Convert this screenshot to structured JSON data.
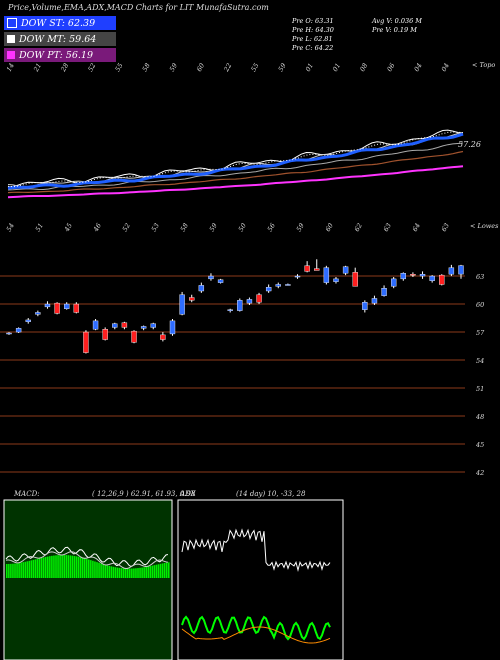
{
  "header": {
    "title": "Price,Volume,EMA,ADX,MACD Charts for LIT MunafaSutra.com"
  },
  "legend": [
    {
      "label": "DOW ST: 62.39",
      "color": "#1f3fff"
    },
    {
      "label": "DOW MT: 59.64",
      "color": "#ffffff"
    },
    {
      "label": "DOW PT: 56.19",
      "color": "#ff33ff"
    }
  ],
  "stats": {
    "pre_o": "Pre  O: 63.31",
    "pre_h": "Pre  H: 64.30",
    "pre_l": "Pre  L: 62.81",
    "pre_c": "Pre  C: 64.22",
    "avg_v": "Avg V: 0.036  M",
    "pre_v": "Pre  V: 0.19 M"
  },
  "top_panel": {
    "right_label": "< Topo",
    "price_label": "57.26",
    "date_labels": [
      "14",
      "21",
      "28",
      "52",
      "55",
      "58",
      "59",
      "60",
      "22",
      "55",
      "59",
      "01",
      "01",
      "08",
      "06",
      "04",
      "04"
    ]
  },
  "mid_panel": {
    "right_label": "< Lowes",
    "date_labels": [
      "54",
      "51",
      "45",
      "46",
      "52",
      "53",
      "58",
      "59",
      "50",
      "56",
      "59",
      "60",
      "62",
      "63",
      "64",
      "63"
    ],
    "y_ticks": [
      "63",
      "60",
      "57",
      "54",
      "51",
      "48",
      "45",
      "42"
    ]
  },
  "macd": {
    "label": "MACD:",
    "values": "( 12,26,9 ) 62.91,  61.93,  0.98"
  },
  "adx": {
    "label": "ADX",
    "values": "(14  day) 10,  -33,  28"
  },
  "chart_data": {
    "type": "candlestick",
    "title": "Price,Volume,EMA,ADX,MACD Charts for LIT MunafaSutra.com",
    "ylim": [
      42,
      66
    ],
    "y_ticks": [
      63,
      60,
      57,
      54,
      51,
      48,
      45,
      42
    ],
    "candles": [
      {
        "o": 56.9,
        "h": 57.1,
        "l": 56.8,
        "c": 57.0
      },
      {
        "o": 57.1,
        "h": 57.6,
        "l": 57.0,
        "c": 57.5
      },
      {
        "o": 58.2,
        "h": 58.6,
        "l": 58.0,
        "c": 58.4
      },
      {
        "o": 59.0,
        "h": 59.4,
        "l": 58.8,
        "c": 59.2
      },
      {
        "o": 59.8,
        "h": 60.4,
        "l": 59.6,
        "c": 60.1
      },
      {
        "o": 60.2,
        "h": 60.3,
        "l": 59.0,
        "c": 59.1
      },
      {
        "o": 59.6,
        "h": 60.3,
        "l": 59.5,
        "c": 60.1
      },
      {
        "o": 60.1,
        "h": 60.3,
        "l": 59.1,
        "c": 59.2
      },
      {
        "o": 57.1,
        "h": 57.3,
        "l": 54.8,
        "c": 54.9
      },
      {
        "o": 57.4,
        "h": 58.5,
        "l": 57.3,
        "c": 58.3
      },
      {
        "o": 57.4,
        "h": 57.6,
        "l": 56.2,
        "c": 56.3
      },
      {
        "o": 57.6,
        "h": 58.1,
        "l": 57.4,
        "c": 58.0
      },
      {
        "o": 58.1,
        "h": 58.2,
        "l": 57.4,
        "c": 57.6
      },
      {
        "o": 57.2,
        "h": 57.3,
        "l": 55.9,
        "c": 56.0
      },
      {
        "o": 57.5,
        "h": 57.8,
        "l": 57.3,
        "c": 57.7
      },
      {
        "o": 57.6,
        "h": 58.1,
        "l": 57.4,
        "c": 58.0
      },
      {
        "o": 56.8,
        "h": 57.1,
        "l": 56.1,
        "c": 56.3
      },
      {
        "o": 56.9,
        "h": 58.5,
        "l": 56.7,
        "c": 58.3
      },
      {
        "o": 59.0,
        "h": 61.4,
        "l": 58.9,
        "c": 61.1
      },
      {
        "o": 60.8,
        "h": 61.1,
        "l": 60.3,
        "c": 60.5
      },
      {
        "o": 61.5,
        "h": 62.4,
        "l": 61.3,
        "c": 62.1
      },
      {
        "o": 62.8,
        "h": 63.4,
        "l": 62.6,
        "c": 63.1
      },
      {
        "o": 62.4,
        "h": 62.8,
        "l": 62.3,
        "c": 62.7
      },
      {
        "o": 59.4,
        "h": 59.6,
        "l": 59.2,
        "c": 59.5
      },
      {
        "o": 59.4,
        "h": 60.7,
        "l": 59.3,
        "c": 60.5
      },
      {
        "o": 60.2,
        "h": 60.8,
        "l": 60.0,
        "c": 60.6
      },
      {
        "o": 61.1,
        "h": 61.3,
        "l": 60.1,
        "c": 60.3
      },
      {
        "o": 61.5,
        "h": 62.2,
        "l": 61.3,
        "c": 61.9
      },
      {
        "o": 62.0,
        "h": 62.4,
        "l": 61.8,
        "c": 62.2
      },
      {
        "o": 62.2,
        "h": 62.3,
        "l": 62.1,
        "c": 62.2
      },
      {
        "o": 63.0,
        "h": 63.3,
        "l": 62.8,
        "c": 63.1
      },
      {
        "o": 64.2,
        "h": 64.7,
        "l": 63.5,
        "c": 63.6
      },
      {
        "o": 63.9,
        "h": 64.9,
        "l": 63.7,
        "c": 63.7
      },
      {
        "o": 62.4,
        "h": 64.2,
        "l": 62.2,
        "c": 64.0
      },
      {
        "o": 62.5,
        "h": 63.0,
        "l": 62.3,
        "c": 62.8
      },
      {
        "o": 63.4,
        "h": 64.2,
        "l": 63.2,
        "c": 64.1
      },
      {
        "o": 63.5,
        "h": 64.0,
        "l": 62.0,
        "c": 62.0
      },
      {
        "o": 59.5,
        "h": 60.5,
        "l": 59.2,
        "c": 60.3
      },
      {
        "o": 60.2,
        "h": 61.0,
        "l": 60.0,
        "c": 60.7
      },
      {
        "o": 61.0,
        "h": 62.1,
        "l": 60.9,
        "c": 61.8
      },
      {
        "o": 62.0,
        "h": 63.0,
        "l": 61.8,
        "c": 62.8
      },
      {
        "o": 62.8,
        "h": 63.5,
        "l": 62.6,
        "c": 63.4
      },
      {
        "o": 63.3,
        "h": 63.5,
        "l": 63.0,
        "c": 63.2
      },
      {
        "o": 63.1,
        "h": 63.6,
        "l": 62.8,
        "c": 63.3
      },
      {
        "o": 62.6,
        "h": 63.2,
        "l": 62.4,
        "c": 63.1
      },
      {
        "o": 63.2,
        "h": 63.3,
        "l": 62.1,
        "c": 62.2
      },
      {
        "o": 63.3,
        "h": 64.3,
        "l": 63.1,
        "c": 64.0
      },
      {
        "o": 63.31,
        "h": 64.3,
        "l": 62.81,
        "c": 64.22
      }
    ],
    "macd": {
      "fast": 12,
      "slow": 26,
      "signal": 9,
      "macd": 62.91,
      "signal_value": 61.93,
      "histogram": 0.98
    },
    "adx": {
      "period": 14,
      "adx": 10,
      "minus_di": -33,
      "plus_di": 28
    }
  }
}
